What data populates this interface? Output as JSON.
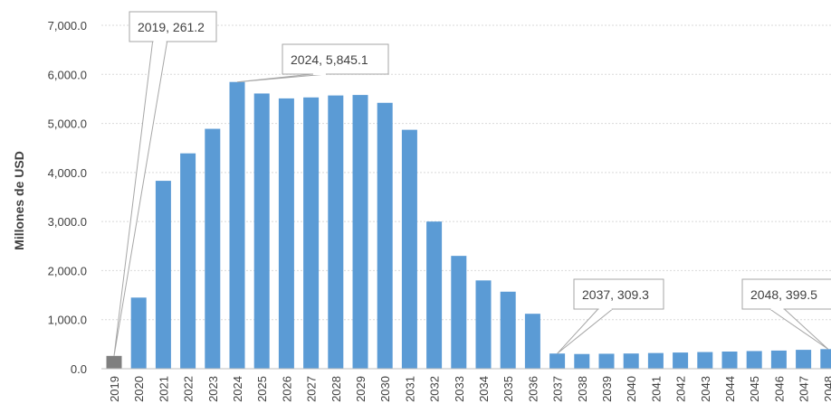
{
  "chart_data": {
    "type": "bar",
    "title": "",
    "xlabel": "",
    "ylabel": "Millones de USD",
    "ylim": [
      0,
      7000
    ],
    "yticks": [
      "0.0",
      "1,000.0",
      "2,000.0",
      "3,000.0",
      "4,000.0",
      "5,000.0",
      "6,000.0",
      "7,000.0"
    ],
    "grid": true,
    "legend": "none",
    "colors": {
      "bar": "#5b9bd5",
      "highlight": "#7f7f7f",
      "grid": "#d9d9d9",
      "callout_border": "#a6a6a6"
    },
    "categories": [
      "2019",
      "2020",
      "2021",
      "2022",
      "2023",
      "2024",
      "2025",
      "2026",
      "2027",
      "2028",
      "2029",
      "2030",
      "2031",
      "2032",
      "2033",
      "2034",
      "2035",
      "2036",
      "2037",
      "2038",
      "2039",
      "2040",
      "2041",
      "2042",
      "2043",
      "2044",
      "2045",
      "2046",
      "2047",
      "2048"
    ],
    "values": [
      261.2,
      1450,
      3830,
      4390,
      4890,
      5845.1,
      5610,
      5510,
      5530,
      5570,
      5580,
      5420,
      4870,
      3000,
      2300,
      1800,
      1570,
      1120,
      309.3,
      300,
      305,
      310,
      320,
      330,
      340,
      350,
      360,
      370,
      385,
      399.5
    ],
    "highlighted_index": 0,
    "annotations": [
      {
        "text": "2019, 261.2",
        "category": "2019"
      },
      {
        "text": "2024, 5,845.1",
        "category": "2024"
      },
      {
        "text": "2037, 309.3",
        "category": "2037"
      },
      {
        "text": "2048, 399.5",
        "category": "2048"
      }
    ]
  }
}
